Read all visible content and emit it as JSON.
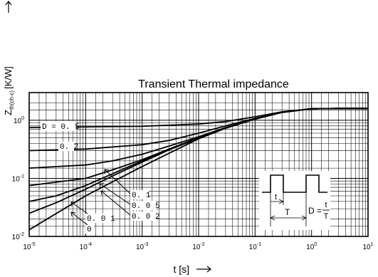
{
  "chart_data": {
    "type": "line",
    "title": "Transient Thermal impedance",
    "xlabel": "t [s]",
    "ylabel": "Zₕ(ch-c) [K/W]",
    "ylabel_main": "Z",
    "ylabel_sub": "th(ch-c)",
    "ylabel_unit": "[K/W]",
    "xscale": "log",
    "yscale": "log",
    "xlim": [
      1e-05,
      10
    ],
    "ylim": [
      0.01,
      3
    ],
    "grid": true,
    "x_ticks": [
      {
        "base": "10",
        "exp": "-5"
      },
      {
        "base": "10",
        "exp": "-4"
      },
      {
        "base": "10",
        "exp": "-3"
      },
      {
        "base": "10",
        "exp": "-2"
      },
      {
        "base": "10",
        "exp": "-1"
      },
      {
        "base": "10",
        "exp": "0"
      },
      {
        "base": "10",
        "exp": "1"
      }
    ],
    "y_ticks": [
      {
        "base": "10",
        "exp": "0"
      },
      {
        "base": "10",
        "exp": "-1"
      },
      {
        "base": "10",
        "exp": "-2"
      }
    ],
    "series": [
      {
        "name": "D = 0.5",
        "x": [
          1e-05,
          0.001,
          0.01,
          0.03,
          0.1,
          0.3,
          1,
          3,
          10
        ],
        "y": [
          0.75,
          0.79,
          0.86,
          0.95,
          1.15,
          1.4,
          1.58,
          1.6,
          1.6
        ]
      },
      {
        "name": "0.2",
        "x": [
          1e-05,
          0.0001,
          0.001,
          0.003,
          0.01,
          0.03,
          0.1,
          0.3,
          1,
          3,
          10
        ],
        "y": [
          0.3,
          0.32,
          0.38,
          0.45,
          0.6,
          0.8,
          1.08,
          1.38,
          1.58,
          1.6,
          1.6
        ]
      },
      {
        "name": "0.1",
        "x": [
          1e-05,
          0.0001,
          0.0003,
          0.001,
          0.003,
          0.01,
          0.03,
          0.1,
          0.3,
          1,
          3,
          10
        ],
        "y": [
          0.15,
          0.17,
          0.2,
          0.26,
          0.36,
          0.52,
          0.75,
          1.05,
          1.37,
          1.58,
          1.6,
          1.6
        ]
      },
      {
        "name": "0.05",
        "x": [
          1e-05,
          0.0001,
          0.0003,
          0.001,
          0.003,
          0.01,
          0.03,
          0.1,
          0.3,
          1,
          3,
          10
        ],
        "y": [
          0.075,
          0.1,
          0.14,
          0.21,
          0.32,
          0.5,
          0.74,
          1.05,
          1.37,
          1.58,
          1.6,
          1.6
        ]
      },
      {
        "name": "0.02",
        "x": [
          1e-05,
          3e-05,
          0.0001,
          0.0003,
          0.001,
          0.003,
          0.01,
          0.03,
          0.1,
          0.3,
          1,
          3,
          10
        ],
        "y": [
          0.04,
          0.05,
          0.075,
          0.12,
          0.2,
          0.32,
          0.5,
          0.74,
          1.05,
          1.37,
          1.58,
          1.6,
          1.6
        ]
      },
      {
        "name": "0.01",
        "x": [
          1e-05,
          3e-05,
          0.0001,
          0.0003,
          0.001,
          0.003,
          0.01,
          0.03,
          0.1,
          0.3,
          1,
          3,
          10
        ],
        "y": [
          0.025,
          0.038,
          0.065,
          0.11,
          0.19,
          0.31,
          0.49,
          0.74,
          1.05,
          1.37,
          1.58,
          1.6,
          1.6
        ]
      },
      {
        "name": "0",
        "x": [
          1e-05,
          0.0001,
          0.001,
          0.01,
          0.03,
          0.1,
          0.3,
          1,
          3,
          10
        ],
        "y": [
          0.013,
          0.05,
          0.16,
          0.48,
          0.73,
          1.05,
          1.37,
          1.58,
          1.6,
          1.6
        ]
      }
    ],
    "curve_labels": {
      "d05": "D = 0. 5",
      "d02": "0. 2",
      "d01": "0. 1",
      "d005": "0. 0 5",
      "d002": "0. 0 2",
      "d001": "0. 0 1",
      "d0": "0"
    },
    "inset": {
      "t_label": "t",
      "T_label": "T",
      "duty_prefix": "D =",
      "frac_num": "t",
      "frac_den": "T"
    },
    "colors": {
      "line": "#000000",
      "grid": "#000000",
      "background": "#ffffff"
    }
  }
}
